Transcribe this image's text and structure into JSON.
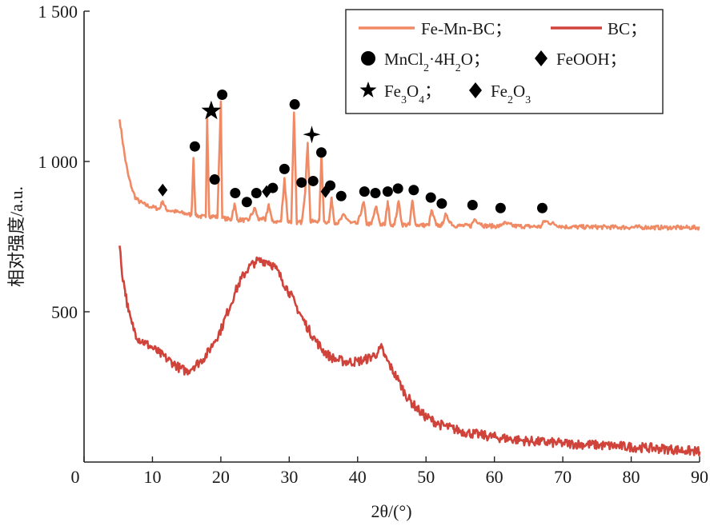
{
  "chart_data": {
    "type": "line",
    "xlabel": "2θ/(°)",
    "ylabel": "相对强度/a.u.",
    "xlim": [
      0,
      90
    ],
    "ylim": [
      0,
      1500
    ],
    "x_ticks": [
      "0",
      "10",
      "20",
      "30",
      "40",
      "50",
      "60",
      "70",
      "80",
      "90"
    ],
    "y_ticks": [
      "500",
      "1 000",
      "1 500"
    ],
    "y_tick_values": [
      500,
      1000,
      1500
    ],
    "x_tick_values": [
      0,
      10,
      20,
      30,
      40,
      50,
      60,
      70,
      80,
      90
    ],
    "legend_position": "top-right",
    "series": [
      {
        "name": "Fe-Mn-BC；",
        "color": "#f08a64",
        "x": [
          5.2,
          5.6,
          6,
          6.5,
          7,
          7.5,
          8,
          9,
          10,
          11,
          11.5,
          12,
          13,
          14,
          15,
          15.7,
          16,
          16.3,
          17,
          17.8,
          18,
          18.3,
          18.8,
          19.5,
          20,
          20.2,
          20.6,
          21.5,
          22,
          22.4,
          23,
          24,
          25,
          25.5,
          26,
          26.5,
          27,
          27.5,
          28,
          28.8,
          29.3,
          29.8,
          30.3,
          30.7,
          31.1,
          31.8,
          32.3,
          32.7,
          33.1,
          33.8,
          34.4,
          34.7,
          35.1,
          35.8,
          36.2,
          36.6,
          37.2,
          38,
          39,
          40,
          40.9,
          41.3,
          42,
          42.7,
          43.3,
          44,
          44.4,
          44.8,
          45.4,
          46,
          46.5,
          47,
          47.6,
          48,
          48.5,
          49.5,
          50.4,
          50.8,
          51.5,
          52.3,
          52.8,
          54,
          55,
          56.6,
          57.1,
          58.5,
          60,
          60.8,
          61.3,
          63,
          65,
          66.8,
          67.3,
          70,
          72,
          75,
          78,
          80,
          82,
          85,
          88,
          90
        ],
        "values": [
          1140,
          1075,
          1010,
          950,
          910,
          880,
          868,
          855,
          848,
          842,
          868,
          840,
          835,
          830,
          826,
          822,
          1012,
          822,
          817,
          815,
          1152,
          818,
          818,
          815,
          1200,
          812,
          810,
          806,
          860,
          806,
          806,
          803,
          845,
          805,
          812,
          802,
          858,
          802,
          800,
          800,
          945,
          800,
          800,
          1163,
          798,
          798,
          892,
          1062,
          800,
          800,
          805,
          1020,
          800,
          798,
          880,
          798,
          796,
          822,
          795,
          793,
          865,
          793,
          791,
          850,
          791,
          790,
          868,
          790,
          790,
          868,
          790,
          789,
          789,
          870,
          789,
          788,
          788,
          838,
          788,
          787,
          822,
          787,
          786,
          786,
          808,
          786,
          785,
          785,
          795,
          785,
          784,
          783,
          802,
          783,
          782,
          782,
          781,
          781,
          781,
          780,
          780,
          780
        ]
      },
      {
        "name": "BC；",
        "color": "#d0433a",
        "x": [
          5.2,
          5.5,
          6,
          6.5,
          7,
          7.5,
          8,
          9,
          10,
          11,
          12,
          13,
          14,
          15,
          16,
          17,
          18,
          19,
          20,
          21,
          22,
          23,
          24,
          25,
          26,
          27,
          28,
          29,
          30,
          31,
          32,
          33,
          34,
          35,
          36,
          37,
          38,
          39,
          40,
          41,
          42,
          43,
          43.5,
          44,
          45,
          46,
          47,
          48,
          49,
          50,
          52,
          54,
          56,
          58,
          60,
          62,
          64,
          66,
          68,
          70,
          72,
          74,
          76,
          78,
          80,
          82,
          84,
          86,
          88,
          90
        ],
        "values": [
          720,
          640,
          570,
          500,
          460,
          430,
          410,
          395,
          380,
          362,
          345,
          330,
          312,
          302,
          318,
          335,
          360,
          400,
          440,
          500,
          560,
          610,
          645,
          665,
          670,
          668,
          645,
          605,
          565,
          520,
          475,
          435,
          400,
          370,
          350,
          340,
          335,
          333,
          335,
          340,
          350,
          365,
          380,
          350,
          310,
          270,
          225,
          195,
          170,
          150,
          125,
          110,
          98,
          90,
          83,
          78,
          72,
          68,
          65,
          62,
          60,
          58,
          55,
          53,
          50,
          48,
          45,
          42,
          38,
          35
        ]
      }
    ],
    "markers": [
      {
        "shape": "diamond",
        "x": 11.5,
        "y": 905
      },
      {
        "shape": "circle",
        "x": 16.2,
        "y": 1050
      },
      {
        "shape": "star",
        "x": 18.6,
        "y": 1168
      },
      {
        "shape": "circle",
        "x": 19.1,
        "y": 940
      },
      {
        "shape": "circle",
        "x": 20.2,
        "y": 1222
      },
      {
        "shape": "circle",
        "x": 22.1,
        "y": 895
      },
      {
        "shape": "circle",
        "x": 23.8,
        "y": 865
      },
      {
        "shape": "circle",
        "x": 25.2,
        "y": 895
      },
      {
        "shape": "diamond",
        "x": 26.7,
        "y": 900
      },
      {
        "shape": "circle",
        "x": 27.6,
        "y": 912
      },
      {
        "shape": "circle",
        "x": 29.3,
        "y": 975
      },
      {
        "shape": "circle",
        "x": 30.8,
        "y": 1190
      },
      {
        "shape": "circle",
        "x": 31.8,
        "y": 930
      },
      {
        "shape": "star4",
        "x": 33.3,
        "y": 1090
      },
      {
        "shape": "circle",
        "x": 33.5,
        "y": 935
      },
      {
        "shape": "circle",
        "x": 34.7,
        "y": 1030
      },
      {
        "shape": "diamond",
        "x": 35.3,
        "y": 900
      },
      {
        "shape": "circle",
        "x": 36.0,
        "y": 920
      },
      {
        "shape": "circle",
        "x": 37.6,
        "y": 885
      },
      {
        "shape": "circle",
        "x": 41.0,
        "y": 900
      },
      {
        "shape": "circle",
        "x": 42.6,
        "y": 895
      },
      {
        "shape": "circle",
        "x": 44.4,
        "y": 900
      },
      {
        "shape": "circle",
        "x": 45.9,
        "y": 910
      },
      {
        "shape": "circle",
        "x": 48.2,
        "y": 905
      },
      {
        "shape": "circle",
        "x": 50.7,
        "y": 880
      },
      {
        "shape": "circle",
        "x": 52.3,
        "y": 860
      },
      {
        "shape": "circle",
        "x": 56.8,
        "y": 855
      },
      {
        "shape": "circle",
        "x": 60.9,
        "y": 845
      },
      {
        "shape": "circle",
        "x": 67.0,
        "y": 845
      }
    ]
  },
  "legend": {
    "row1_a": "Fe-Mn-BC；",
    "row1_b": "BC；",
    "row2_a": "MnCl",
    "row2_a_sub1": "2",
    "row2_a_mid": "·4H",
    "row2_a_sub2": "2",
    "row2_a_end": "O；",
    "row2_b": "FeOOH；",
    "row3_a": "Fe",
    "row3_a_sub1": "3",
    "row3_a_mid": "O",
    "row3_a_sub2": "4",
    "row3_a_end": "；",
    "row3_b": "Fe",
    "row3_b_sub1": "2",
    "row3_b_mid": "O",
    "row3_b_sub2": "3"
  }
}
